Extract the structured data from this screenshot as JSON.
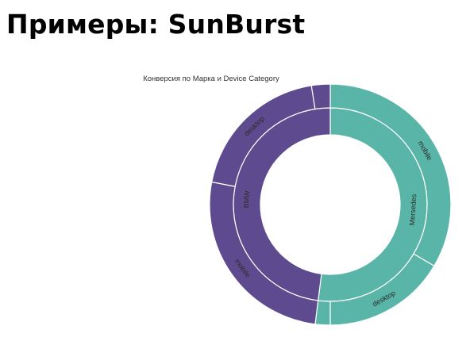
{
  "page": {
    "heading": "Примеры: SunBurst"
  },
  "colors": {
    "purple": "#5e4a8e",
    "teal": "#5ab5a9",
    "separator": "#ffffff",
    "label": "#2b2b2b"
  },
  "chart_data": {
    "type": "sunburst",
    "title": "Конверсия по Марка и Device Category",
    "levels": [
      "Марка",
      "Device Category"
    ],
    "hierarchy": [
      {
        "name": "Mersedes",
        "color": "#5ab5a9",
        "value": 52,
        "children": [
          {
            "name": "mobile",
            "value": 33.5
          },
          {
            "name": "desktop",
            "value": 16.5
          },
          {
            "name": "",
            "value": 2
          }
        ]
      },
      {
        "name": "BMW",
        "color": "#5e4a8e",
        "value": 48,
        "children": [
          {
            "name": "mobile",
            "value": 26
          },
          {
            "name": "desktop",
            "value": 19.5
          },
          {
            "name": "",
            "value": 2.5
          }
        ]
      }
    ]
  }
}
